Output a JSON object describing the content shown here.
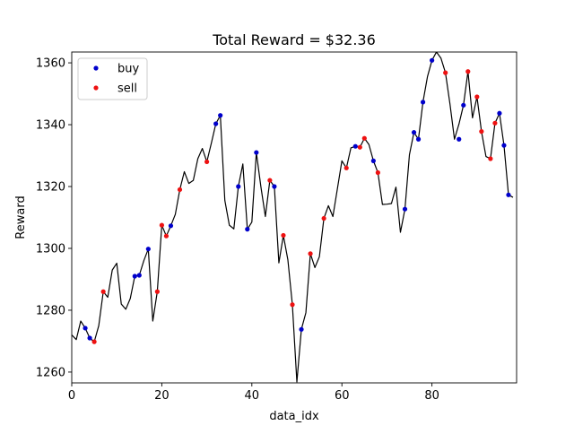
{
  "chart_data": {
    "type": "line",
    "title": "Total Reward = $32.36",
    "xlabel": "data_idx",
    "ylabel": "Reward",
    "xlim": [
      0,
      98.8
    ],
    "ylim": [
      1256.5,
      1363.5
    ],
    "xticks": [
      0,
      20,
      40,
      60,
      80
    ],
    "yticks": [
      1260,
      1280,
      1300,
      1320,
      1340,
      1360
    ],
    "grid": false,
    "legend_position": "top-left",
    "line_color": "#000000",
    "series": [
      {
        "name": "",
        "x": [
          0,
          1,
          2,
          3,
          4,
          5,
          6,
          7,
          8,
          9,
          10,
          11,
          12,
          13,
          14,
          15,
          16,
          17,
          18,
          19,
          20,
          21,
          22,
          23,
          24,
          25,
          26,
          27,
          28,
          29,
          30,
          31,
          32,
          33,
          34,
          35,
          36,
          37,
          38,
          39,
          40,
          41,
          42,
          43,
          44,
          45,
          46,
          47,
          48,
          49,
          50,
          51,
          52,
          53,
          54,
          55,
          56,
          57,
          58,
          59,
          60,
          61,
          62,
          63,
          64,
          65,
          66,
          67,
          68,
          69,
          70,
          71,
          72,
          73,
          74,
          75,
          76,
          77,
          78,
          79,
          80,
          81,
          82,
          83,
          84,
          85,
          86,
          87,
          88,
          89,
          90,
          91,
          92,
          93,
          94,
          95,
          96,
          97,
          98
        ],
        "values": [
          1272,
          1270.5,
          1276.5,
          1274.2,
          1271,
          1269.8,
          1275,
          1286,
          1284.2,
          1293,
          1295.2,
          1282,
          1280.3,
          1283.8,
          1291,
          1291.3,
          1296,
          1299.8,
          1276.5,
          1286,
          1307.5,
          1304,
          1307.3,
          1311,
          1319,
          1324.8,
          1321,
          1322,
          1329,
          1332.3,
          1328,
          1334,
          1340.3,
          1343,
          1315.5,
          1307.5,
          1306.3,
          1320,
          1327.3,
          1306.2,
          1308.5,
          1331,
          1320,
          1310.3,
          1322,
          1320,
          1295.3,
          1304.2,
          1296.3,
          1281.8,
          1256.8,
          1273.8,
          1279.2,
          1298.3,
          1293.8,
          1297.3,
          1309.7,
          1313.8,
          1310.3,
          1319.3,
          1328.3,
          1326,
          1332.5,
          1333,
          1332.7,
          1335.6,
          1333.6,
          1328.3,
          1324.5,
          1314.2,
          1314.3,
          1314.5,
          1319.8,
          1305.2,
          1312.7,
          1330.3,
          1337.5,
          1335.3,
          1347.3,
          1355.5,
          1360.8,
          1363.5,
          1361.5,
          1356.8,
          1346.7,
          1335.3,
          1340.2,
          1346.3,
          1357.2,
          1342.2,
          1349,
          1337.8,
          1329.7,
          1329,
          1340.5,
          1343.7,
          1333.3,
          1317.3,
          1316.5
        ]
      },
      {
        "name": "buy",
        "color": "#0000cc",
        "x": [
          3,
          4,
          14,
          15,
          17,
          22,
          32,
          33,
          37,
          39,
          41,
          45,
          51,
          63,
          67,
          74,
          76,
          77,
          78,
          80,
          86,
          87,
          95,
          96,
          97
        ],
        "values": [
          1274.2,
          1271,
          1291,
          1291.3,
          1299.8,
          1307.3,
          1340.3,
          1343,
          1320,
          1306.2,
          1331,
          1320,
          1273.8,
          1333,
          1328.3,
          1312.7,
          1337.5,
          1335.3,
          1347.3,
          1360.8,
          1335.3,
          1346.3,
          1343.7,
          1333.3,
          1317.3
        ]
      },
      {
        "name": "sell",
        "color": "#ee1111",
        "x": [
          5,
          7,
          19,
          20,
          21,
          24,
          30,
          44,
          47,
          49,
          53,
          56,
          61,
          64,
          65,
          68,
          83,
          88,
          90,
          91,
          93,
          94
        ],
        "values": [
          1269.8,
          1286,
          1286,
          1307.5,
          1304,
          1319,
          1328,
          1322,
          1304.2,
          1281.8,
          1298.3,
          1309.7,
          1326,
          1332.7,
          1335.6,
          1324.5,
          1356.8,
          1357.2,
          1349,
          1337.8,
          1329,
          1340.5
        ]
      }
    ]
  }
}
